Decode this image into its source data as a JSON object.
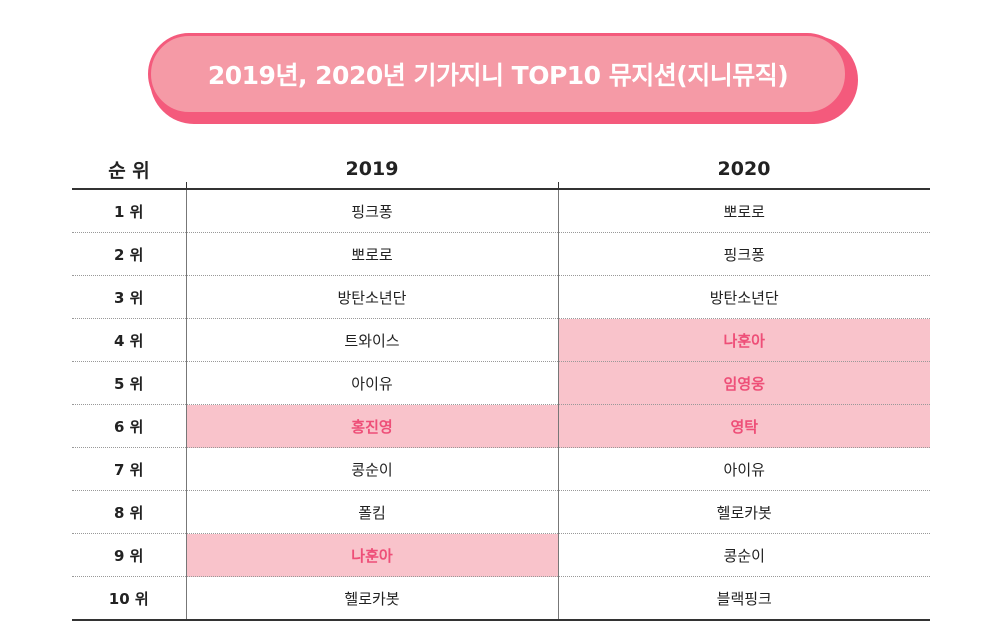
{
  "title": "2019년, 2020년 기가지니 TOP10 뮤지션(지니뮤직)",
  "colors": {
    "title_fill": "#f59aa6",
    "title_border": "#f45a7c",
    "highlight_bg": "#f9c3cb",
    "highlight_text": "#ee4f78"
  },
  "table": {
    "headers": [
      "순 위",
      "2019",
      "2020"
    ],
    "rows": [
      {
        "rank": "1 위",
        "y2019": "핑크퐁",
        "y2020": "뽀로로",
        "hl2019": false,
        "hl2020": false
      },
      {
        "rank": "2 위",
        "y2019": "뽀로로",
        "y2020": "핑크퐁",
        "hl2019": false,
        "hl2020": false
      },
      {
        "rank": "3 위",
        "y2019": "방탄소년단",
        "y2020": "방탄소년단",
        "hl2019": false,
        "hl2020": false
      },
      {
        "rank": "4 위",
        "y2019": "트와이스",
        "y2020": "나훈아",
        "hl2019": false,
        "hl2020": true
      },
      {
        "rank": "5 위",
        "y2019": "아이유",
        "y2020": "임영웅",
        "hl2019": false,
        "hl2020": true
      },
      {
        "rank": "6 위",
        "y2019": "홍진영",
        "y2020": "영탁",
        "hl2019": true,
        "hl2020": true
      },
      {
        "rank": "7 위",
        "y2019": "콩순이",
        "y2020": "아이유",
        "hl2019": false,
        "hl2020": false
      },
      {
        "rank": "8 위",
        "y2019": "폴킴",
        "y2020": "헬로카봇",
        "hl2019": false,
        "hl2020": false
      },
      {
        "rank": "9 위",
        "y2019": "나훈아",
        "y2020": "콩순이",
        "hl2019": true,
        "hl2020": false
      },
      {
        "rank": "10 위",
        "y2019": "헬로카봇",
        "y2020": "블랙핑크",
        "hl2019": false,
        "hl2020": false
      }
    ]
  }
}
